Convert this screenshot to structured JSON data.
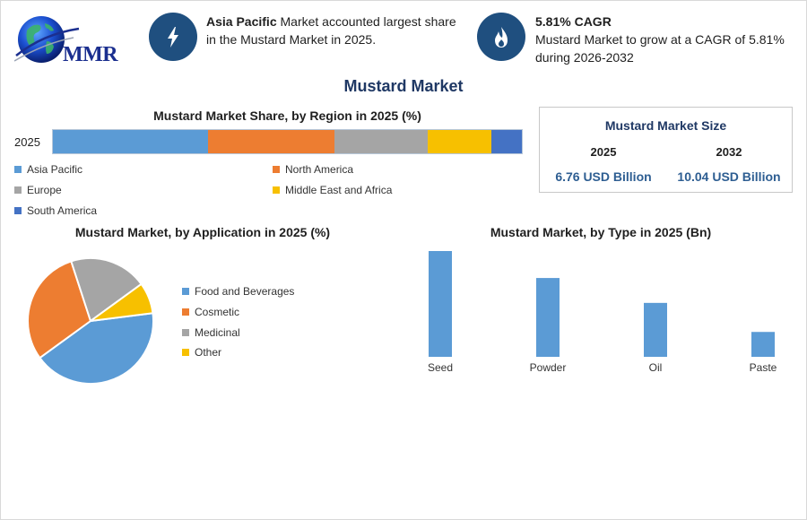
{
  "logo": {
    "text": "MMR"
  },
  "highlights": [
    {
      "icon": "lightning-icon",
      "bold": "Asia Pacific",
      "text": " Market accounted largest share in the Mustard Market in 2025."
    },
    {
      "icon": "flame-icon",
      "bold": "5.81% CAGR",
      "text": "Mustard Market to grow at a CAGR of 5.81% during 2026-2032"
    }
  ],
  "main_title": "Mustard Market",
  "size_card": {
    "title": "Mustard Market Size",
    "year_a": "2025",
    "year_b": "2032",
    "value_a": "6.76 USD Billion",
    "value_b": "10.04 USD Billion"
  },
  "colors": {
    "blue": "#5b9bd5",
    "orange": "#ed7d31",
    "gray": "#a5a5a5",
    "yellow": "#f7c000",
    "darkblue": "#4472c4",
    "badge": "#1f4f7f"
  },
  "chart_data": [
    {
      "type": "bar",
      "orientation": "horizontal-stacked",
      "title": "Mustard Market Share, by Region in 2025 (%)",
      "categories": [
        "2025"
      ],
      "series": [
        {
          "name": "Asia Pacific",
          "values": [
            33
          ],
          "color": "#5b9bd5"
        },
        {
          "name": "North America",
          "values": [
            27
          ],
          "color": "#ed7d31"
        },
        {
          "name": "Europe",
          "values": [
            20
          ],
          "color": "#a5a5a5"
        },
        {
          "name": "Middle East and Africa",
          "values": [
            13.5
          ],
          "color": "#f7c000"
        },
        {
          "name": "South America",
          "values": [
            6.5
          ],
          "color": "#4472c4"
        }
      ],
      "legend": "bottom"
    },
    {
      "type": "pie",
      "title": "Mustard Market, by Application in 2025 (%)",
      "categories": [
        "Food and Beverages",
        "Cosmetic",
        "Medicinal",
        "Other"
      ],
      "values": [
        42,
        30,
        20,
        8
      ],
      "colors": [
        "#5b9bd5",
        "#ed7d31",
        "#a5a5a5",
        "#f7c000"
      ],
      "legend": "right"
    },
    {
      "type": "bar",
      "title": "Mustard Market, by Type in 2025 (Bn)",
      "categories": [
        "Seed",
        "Powder",
        "Oil",
        "Paste"
      ],
      "values": [
        2.55,
        1.9,
        1.3,
        0.6
      ],
      "color": "#5b9bd5",
      "ylim": [
        0,
        2.55
      ],
      "grid": false
    }
  ]
}
